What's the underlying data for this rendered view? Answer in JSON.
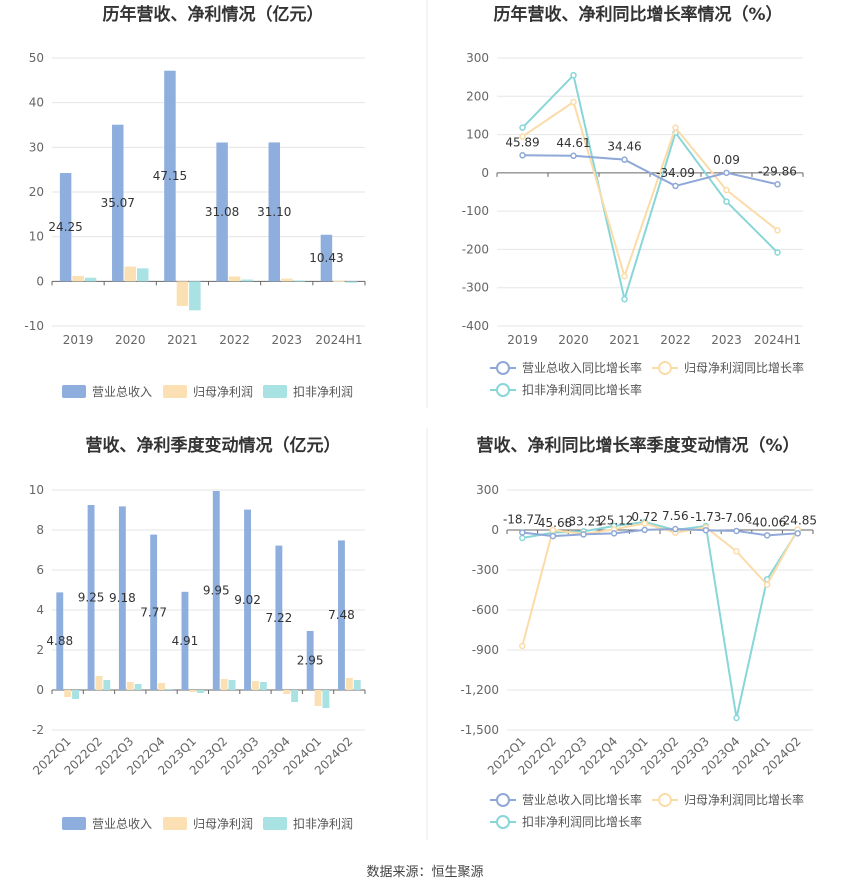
{
  "source": "数据来源：恒生聚源",
  "colors": {
    "revenue": "#8eaedd",
    "net_profit": "#fbe0b4",
    "deducted": "#a8e2e3",
    "revenue_line": "#8fa8d8",
    "net_line": "#fbdca9",
    "deducted_line": "#89d6d8"
  },
  "chart_data": [
    {
      "type": "bar",
      "title": "历年营收、净利情况（亿元）",
      "categories": [
        "2019",
        "2020",
        "2021",
        "2022",
        "2023",
        "2024H1"
      ],
      "ylim": [
        -10,
        50
      ],
      "yticks": [
        -10,
        0,
        10,
        20,
        30,
        40,
        50
      ],
      "series": [
        {
          "name": "营业总收入",
          "color": "#8eaedd",
          "values": [
            24.25,
            35.07,
            47.15,
            31.08,
            31.1,
            10.43
          ],
          "labels": [
            "24.25",
            "35.07",
            "47.15",
            "31.08",
            "31.10",
            "10.43"
          ]
        },
        {
          "name": "归母净利润",
          "color": "#fbe0b4",
          "values": [
            1.2,
            3.3,
            -5.5,
            1.1,
            0.6,
            0.1
          ]
        },
        {
          "name": "扣非净利润",
          "color": "#a8e2e3",
          "values": [
            0.8,
            2.9,
            -6.5,
            0.4,
            0.2,
            -0.3
          ]
        }
      ],
      "legend": "bottom"
    },
    {
      "type": "line",
      "title": "历年营收、净利同比增长率情况（%）",
      "categories": [
        "2019",
        "2020",
        "2021",
        "2022",
        "2023",
        "2024H1"
      ],
      "ylim": [
        -400,
        300
      ],
      "yticks": [
        -400,
        -300,
        -200,
        -100,
        0,
        100,
        200,
        300
      ],
      "series": [
        {
          "name": "营业总收入同比增长率",
          "color": "#8fa8d8",
          "values": [
            45.89,
            44.61,
            34.46,
            -34.09,
            0.09,
            -29.86
          ],
          "labels": [
            "45.89",
            "44.61",
            "34.46",
            "-34.09",
            "0.09",
            "-29.86"
          ]
        },
        {
          "name": "归母净利润同比增长率",
          "color": "#fbdca9",
          "values": [
            95,
            185,
            -270,
            118,
            -45,
            -150
          ]
        },
        {
          "name": "扣非净利润同比增长率",
          "color": "#89d6d8",
          "values": [
            118,
            255,
            -330,
            105,
            -75,
            -208
          ]
        }
      ],
      "legend": "bottom"
    },
    {
      "type": "bar",
      "title": "营收、净利季度变动情况（亿元）",
      "categories": [
        "2022Q1",
        "2022Q2",
        "2022Q3",
        "2022Q4",
        "2023Q1",
        "2023Q2",
        "2023Q3",
        "2023Q4",
        "2024Q1",
        "2024Q2"
      ],
      "ylim": [
        -2,
        10
      ],
      "yticks": [
        -2,
        0,
        2,
        4,
        6,
        8,
        10
      ],
      "series": [
        {
          "name": "营业总收入",
          "color": "#8eaedd",
          "values": [
            4.88,
            9.25,
            9.18,
            7.77,
            4.91,
            9.95,
            9.02,
            7.22,
            2.95,
            7.48
          ],
          "labels": [
            "4.88",
            "9.25",
            "9.18",
            "7.77",
            "4.91",
            "9.95",
            "9.02",
            "7.22",
            "2.95",
            "7.48"
          ]
        },
        {
          "name": "归母净利润",
          "color": "#fbe0b4",
          "values": [
            -0.35,
            0.7,
            0.4,
            0.35,
            -0.1,
            0.55,
            0.45,
            -0.2,
            -0.8,
            0.6
          ]
        },
        {
          "name": "扣非净利润",
          "color": "#a8e2e3",
          "values": [
            -0.45,
            0.5,
            0.3,
            0.05,
            -0.15,
            0.5,
            0.4,
            -0.6,
            -0.9,
            0.5
          ]
        }
      ],
      "legend": "bottom"
    },
    {
      "type": "line",
      "title": "营收、净利同比增长率季度变动情况（%）",
      "categories": [
        "2022Q1",
        "2022Q2",
        "2022Q3",
        "2022Q4",
        "2023Q1",
        "2023Q2",
        "2023Q3",
        "2023Q4",
        "2024Q1",
        "2024Q2"
      ],
      "ylim": [
        -1500,
        300
      ],
      "yticks": [
        -1500,
        -1200,
        -900,
        -600,
        -300,
        0,
        300
      ],
      "ytick_labels": [
        "-1,500",
        "-1,200",
        "-900",
        "-600",
        "-300",
        "0",
        "300"
      ],
      "series": [
        {
          "name": "营业总收入同比增长率",
          "color": "#8fa8d8",
          "values": [
            -18.77,
            -45.68,
            -33.21,
            -25.12,
            0.72,
            7.56,
            -1.73,
            -7.06,
            -40.06,
            -24.85
          ],
          "labels": [
            "-18.77",
            "-45.68",
            "-33.21",
            "-25.12",
            "0.72",
            "7.56",
            "-1.73",
            "-7.06",
            "-40.06",
            "-24.85"
          ]
        },
        {
          "name": "归母净利润同比增长率",
          "color": "#fbdca9",
          "values": [
            -870,
            0,
            -30,
            5,
            50,
            -20,
            20,
            -160,
            -410,
            5
          ]
        },
        {
          "name": "扣非净利润同比增长率",
          "color": "#89d6d8",
          "values": [
            -60,
            -20,
            -10,
            30,
            60,
            0,
            30,
            -1410,
            -370,
            -5
          ]
        }
      ],
      "legend": "bottom"
    }
  ]
}
